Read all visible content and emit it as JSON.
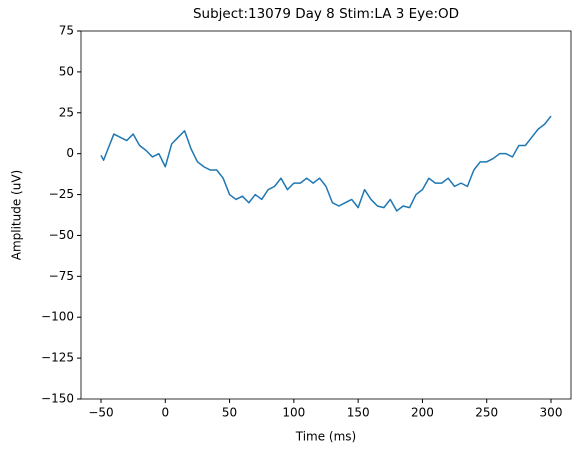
{
  "chart_data": {
    "type": "line",
    "title": "Subject:13079 Day 8 Stim:LA 3 Eye:OD",
    "xlabel": "Time (ms)",
    "ylabel": "Amplitude (uV)",
    "x": [
      -50,
      -48,
      -45,
      -40,
      -35,
      -30,
      -25,
      -20,
      -15,
      -10,
      -5,
      0,
      5,
      10,
      15,
      20,
      25,
      30,
      35,
      40,
      45,
      50,
      55,
      60,
      65,
      70,
      75,
      80,
      85,
      90,
      95,
      100,
      105,
      110,
      115,
      120,
      125,
      130,
      135,
      140,
      145,
      150,
      155,
      160,
      165,
      170,
      175,
      180,
      185,
      190,
      195,
      200,
      205,
      210,
      215,
      220,
      225,
      230,
      235,
      240,
      245,
      250,
      255,
      260,
      265,
      270,
      275,
      280,
      285,
      290,
      295,
      300
    ],
    "series": [
      {
        "name": "Amplitude",
        "color": "#1f77b4",
        "values": [
          -1,
          -4,
          2,
          12,
          10,
          8,
          12,
          5,
          2,
          -2,
          0,
          -8,
          6,
          10,
          14,
          3,
          -5,
          -8,
          -10,
          -10,
          -15,
          -25,
          -28,
          -26,
          -30,
          -25,
          -28,
          -22,
          -20,
          -15,
          -22,
          -18,
          -18,
          -15,
          -18,
          -15,
          -20,
          -30,
          -32,
          -30,
          -28,
          -33,
          -22,
          -28,
          -32,
          -33,
          -28,
          -35,
          -32,
          -33,
          -25,
          -22,
          -15,
          -18,
          -18,
          -15,
          -20,
          -18,
          -20,
          -10,
          -5,
          -5,
          -3,
          0,
          0,
          -2,
          5,
          5,
          10,
          15,
          18,
          23
        ]
      }
    ],
    "xlim": [
      -50,
      300
    ],
    "xticks": [
      {
        "value": -50,
        "label": "−50"
      },
      0,
      50,
      100,
      150,
      200,
      250,
      300
    ],
    "ylim": [
      -150,
      75
    ],
    "yticks": [
      {
        "value": -150,
        "label": "−150"
      },
      {
        "value": -125,
        "label": "−125"
      },
      {
        "value": -100,
        "label": "−100"
      },
      {
        "value": -75,
        "label": "−75"
      },
      {
        "value": -50,
        "label": "−50"
      },
      {
        "value": -25,
        "label": "−25"
      },
      0,
      25,
      50,
      75
    ]
  }
}
